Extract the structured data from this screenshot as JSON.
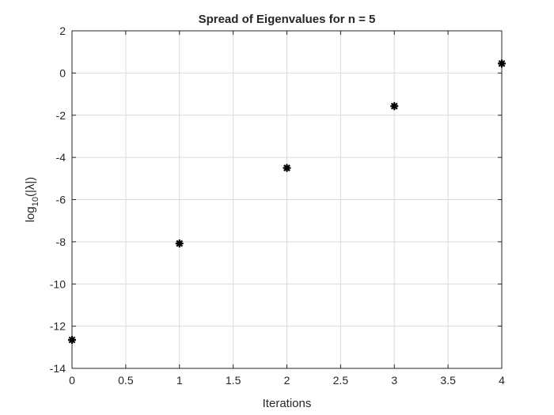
{
  "chart_data": {
    "type": "scatter",
    "title": "Spread of Eigenvalues for n = 5",
    "xlabel": "Iterations",
    "ylabel": "log10(|λ|)",
    "ylabel_parts": {
      "prefix": "log",
      "subscript": "10",
      "suffix": "(|λ|)"
    },
    "xlim": [
      0,
      4
    ],
    "ylim": [
      -14,
      2
    ],
    "xticks": [
      "0",
      "0.5",
      "1",
      "1.5",
      "2",
      "2.5",
      "3",
      "3.5",
      "4"
    ],
    "xtick_values": [
      0,
      0.5,
      1,
      1.5,
      2,
      2.5,
      3,
      3.5,
      4
    ],
    "yticks": [
      "2",
      "0",
      "-2",
      "-4",
      "-6",
      "-8",
      "-10",
      "-12",
      "-14"
    ],
    "ytick_values": [
      2,
      0,
      -2,
      -4,
      -6,
      -8,
      -10,
      -12,
      -14
    ],
    "grid": true,
    "marker": "asterisk",
    "marker_color": "#000000",
    "series": [
      {
        "x": [
          0,
          1,
          2,
          3,
          4
        ],
        "y": [
          -12.65,
          -8.08,
          -4.5,
          -1.57,
          0.45
        ]
      }
    ]
  }
}
